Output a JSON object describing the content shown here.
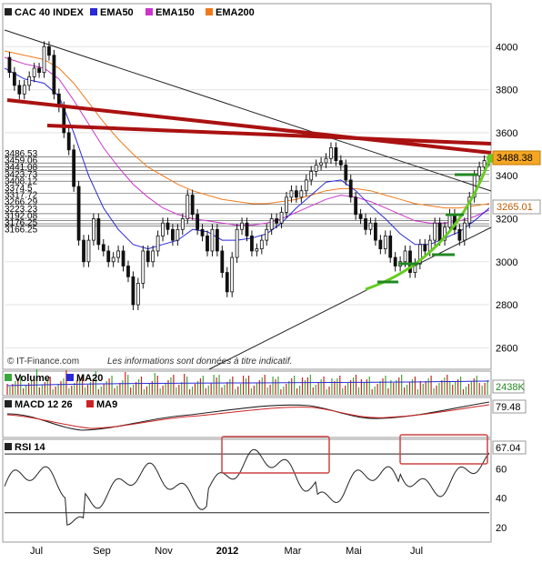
{
  "chart_data": [
    {
      "panel": "price",
      "type": "candlestick",
      "title": "CAC 40 INDEX",
      "legend": [
        {
          "name": "CAC 40 INDEX",
          "color": "#222222"
        },
        {
          "name": "EMA50",
          "color": "#2a2ad6"
        },
        {
          "name": "EMA150",
          "color": "#cc33cc"
        },
        {
          "name": "EMA200",
          "color": "#f07a1a"
        }
      ],
      "legend_position": "top-left",
      "ylim": [
        2500,
        4200
      ],
      "yticks": [
        2600,
        2800,
        3000,
        3200,
        3400,
        3600,
        3800,
        4000
      ],
      "x_labels": [
        "Jul",
        "Sep",
        "Nov",
        "2012",
        "Mar",
        "Mai",
        "Jul"
      ],
      "horizontal_levels": [
        "3486.53",
        "3459.06",
        "3441.08",
        "3423.73",
        "3408.12",
        "3374.5",
        "3317.72",
        "3266.29",
        "3223.23",
        "3192.08",
        "3176.25",
        "3166.25"
      ],
      "last_price": "3488.38",
      "ref_price": "3265.01",
      "watermark": "© IT-Finance.com",
      "disclaimer": "Les informations sont données à titre indicatif.",
      "close_points": [
        [
          0,
          3950
        ],
        [
          2,
          3880
        ],
        [
          4,
          3820
        ],
        [
          6,
          3780
        ],
        [
          8,
          3820
        ],
        [
          10,
          3860
        ],
        [
          12,
          3900
        ],
        [
          14,
          3880
        ],
        [
          16,
          4000
        ],
        [
          18,
          3960
        ],
        [
          20,
          3780
        ],
        [
          22,
          3720
        ],
        [
          24,
          3600
        ],
        [
          26,
          3520
        ],
        [
          28,
          3350
        ],
        [
          30,
          3100
        ],
        [
          32,
          3000
        ],
        [
          34,
          3100
        ],
        [
          36,
          3200
        ],
        [
          38,
          3080
        ],
        [
          40,
          3050
        ],
        [
          42,
          3000
        ],
        [
          44,
          3020
        ],
        [
          46,
          3050
        ],
        [
          48,
          2980
        ],
        [
          50,
          2930
        ],
        [
          52,
          2800
        ],
        [
          54,
          2900
        ],
        [
          56,
          3050
        ],
        [
          58,
          3000
        ],
        [
          60,
          3050
        ],
        [
          62,
          3120
        ],
        [
          64,
          3180
        ],
        [
          66,
          3150
        ],
        [
          68,
          3100
        ],
        [
          70,
          3150
        ],
        [
          72,
          3200
        ],
        [
          74,
          3310
        ],
        [
          76,
          3220
        ],
        [
          78,
          3150
        ],
        [
          80,
          3120
        ],
        [
          82,
          3050
        ],
        [
          84,
          3150
        ],
        [
          86,
          3050
        ],
        [
          88,
          2950
        ],
        [
          90,
          2860
        ],
        [
          92,
          3020
        ],
        [
          94,
          3150
        ],
        [
          96,
          3180
        ],
        [
          98,
          3120
        ],
        [
          100,
          3050
        ],
        [
          102,
          3060
        ],
        [
          104,
          3100
        ],
        [
          106,
          3150
        ],
        [
          108,
          3200
        ],
        [
          110,
          3180
        ],
        [
          112,
          3230
        ],
        [
          114,
          3300
        ],
        [
          116,
          3330
        ],
        [
          118,
          3300
        ],
        [
          120,
          3330
        ],
        [
          122,
          3380
        ],
        [
          124,
          3420
        ],
        [
          126,
          3450
        ],
        [
          128,
          3460
        ],
        [
          130,
          3480
        ],
        [
          132,
          3530
        ],
        [
          134,
          3470
        ],
        [
          136,
          3450
        ],
        [
          138,
          3380
        ],
        [
          140,
          3300
        ],
        [
          142,
          3220
        ],
        [
          144,
          3200
        ],
        [
          146,
          3150
        ],
        [
          148,
          3180
        ],
        [
          150,
          3100
        ],
        [
          152,
          3060
        ],
        [
          154,
          3120
        ],
        [
          156,
          3020
        ],
        [
          158,
          2980
        ],
        [
          160,
          3000
        ],
        [
          162,
          3050
        ],
        [
          164,
          2950
        ],
        [
          166,
          2990
        ],
        [
          168,
          3080
        ],
        [
          170,
          3050
        ],
        [
          172,
          3100
        ],
        [
          174,
          3180
        ],
        [
          176,
          3100
        ],
        [
          178,
          3160
        ],
        [
          180,
          3220
        ],
        [
          182,
          3150
        ],
        [
          184,
          3100
        ],
        [
          186,
          3180
        ],
        [
          188,
          3300
        ],
        [
          190,
          3400
        ],
        [
          192,
          3440
        ],
        [
          194,
          3470
        ],
        [
          196,
          3488
        ]
      ],
      "ema50_points": [
        [
          0,
          3900
        ],
        [
          8,
          3850
        ],
        [
          16,
          3830
        ],
        [
          22,
          3770
        ],
        [
          28,
          3600
        ],
        [
          34,
          3400
        ],
        [
          40,
          3250
        ],
        [
          46,
          3150
        ],
        [
          52,
          3080
        ],
        [
          58,
          3060
        ],
        [
          64,
          3080
        ],
        [
          70,
          3100
        ],
        [
          76,
          3150
        ],
        [
          82,
          3140
        ],
        [
          88,
          3100
        ],
        [
          94,
          3100
        ],
        [
          100,
          3110
        ],
        [
          106,
          3130
        ],
        [
          112,
          3180
        ],
        [
          118,
          3250
        ],
        [
          124,
          3310
        ],
        [
          130,
          3370
        ],
        [
          136,
          3380
        ],
        [
          142,
          3330
        ],
        [
          148,
          3260
        ],
        [
          154,
          3200
        ],
        [
          160,
          3130
        ],
        [
          166,
          3080
        ],
        [
          172,
          3080
        ],
        [
          178,
          3110
        ],
        [
          184,
          3140
        ],
        [
          190,
          3190
        ],
        [
          196,
          3250
        ]
      ],
      "ema150_points": [
        [
          0,
          3950
        ],
        [
          8,
          3920
        ],
        [
          16,
          3900
        ],
        [
          22,
          3850
        ],
        [
          28,
          3750
        ],
        [
          34,
          3640
        ],
        [
          40,
          3530
        ],
        [
          46,
          3440
        ],
        [
          52,
          3360
        ],
        [
          58,
          3300
        ],
        [
          64,
          3250
        ],
        [
          70,
          3220
        ],
        [
          76,
          3200
        ],
        [
          82,
          3190
        ],
        [
          88,
          3180
        ],
        [
          94,
          3170
        ],
        [
          100,
          3170
        ],
        [
          106,
          3180
        ],
        [
          112,
          3200
        ],
        [
          118,
          3230
        ],
        [
          124,
          3260
        ],
        [
          130,
          3290
        ],
        [
          136,
          3310
        ],
        [
          142,
          3300
        ],
        [
          148,
          3280
        ],
        [
          154,
          3250
        ],
        [
          160,
          3220
        ],
        [
          166,
          3190
        ],
        [
          172,
          3180
        ],
        [
          178,
          3180
        ],
        [
          184,
          3190
        ],
        [
          190,
          3210
        ],
        [
          196,
          3240
        ]
      ],
      "ema200_points": [
        [
          0,
          3980
        ],
        [
          8,
          3960
        ],
        [
          16,
          3940
        ],
        [
          22,
          3900
        ],
        [
          28,
          3830
        ],
        [
          34,
          3740
        ],
        [
          40,
          3650
        ],
        [
          46,
          3570
        ],
        [
          52,
          3500
        ],
        [
          58,
          3440
        ],
        [
          64,
          3400
        ],
        [
          70,
          3360
        ],
        [
          76,
          3330
        ],
        [
          82,
          3310
        ],
        [
          88,
          3290
        ],
        [
          94,
          3280
        ],
        [
          100,
          3270
        ],
        [
          106,
          3270
        ],
        [
          112,
          3280
        ],
        [
          118,
          3290
        ],
        [
          124,
          3310
        ],
        [
          130,
          3330
        ],
        [
          136,
          3340
        ],
        [
          142,
          3340
        ],
        [
          148,
          3330
        ],
        [
          154,
          3310
        ],
        [
          160,
          3290
        ],
        [
          166,
          3270
        ],
        [
          172,
          3260
        ],
        [
          178,
          3250
        ],
        [
          184,
          3250
        ],
        [
          190,
          3260
        ],
        [
          196,
          3270
        ]
      ]
    },
    {
      "panel": "volume",
      "type": "bar",
      "legend": [
        {
          "name": "Volume",
          "color": "#3aa83a"
        },
        {
          "name": "MA20",
          "color": "#2a2ad6"
        }
      ],
      "last_value": "2438K"
    },
    {
      "panel": "macd",
      "type": "line",
      "legend": [
        {
          "name": "MACD 12 26",
          "color": "#222222"
        },
        {
          "name": "MA9",
          "color": "#cc2222"
        }
      ],
      "last_value": "79.48"
    },
    {
      "panel": "rsi",
      "type": "line",
      "legend": [
        {
          "name": "RSI 14",
          "color": "#222222"
        }
      ],
      "ylim": [
        10,
        80
      ],
      "yticks": [
        20,
        40,
        60
      ],
      "reference_lines": [
        70,
        30
      ],
      "last_value": "67.04"
    }
  ],
  "colors": {
    "red_trendline": "#aa1111",
    "green_curve": "#66cc22",
    "last_price_badge": "#f5a623",
    "ref_price_badge": "#ffffff",
    "highlight_box": "#cc4444"
  }
}
